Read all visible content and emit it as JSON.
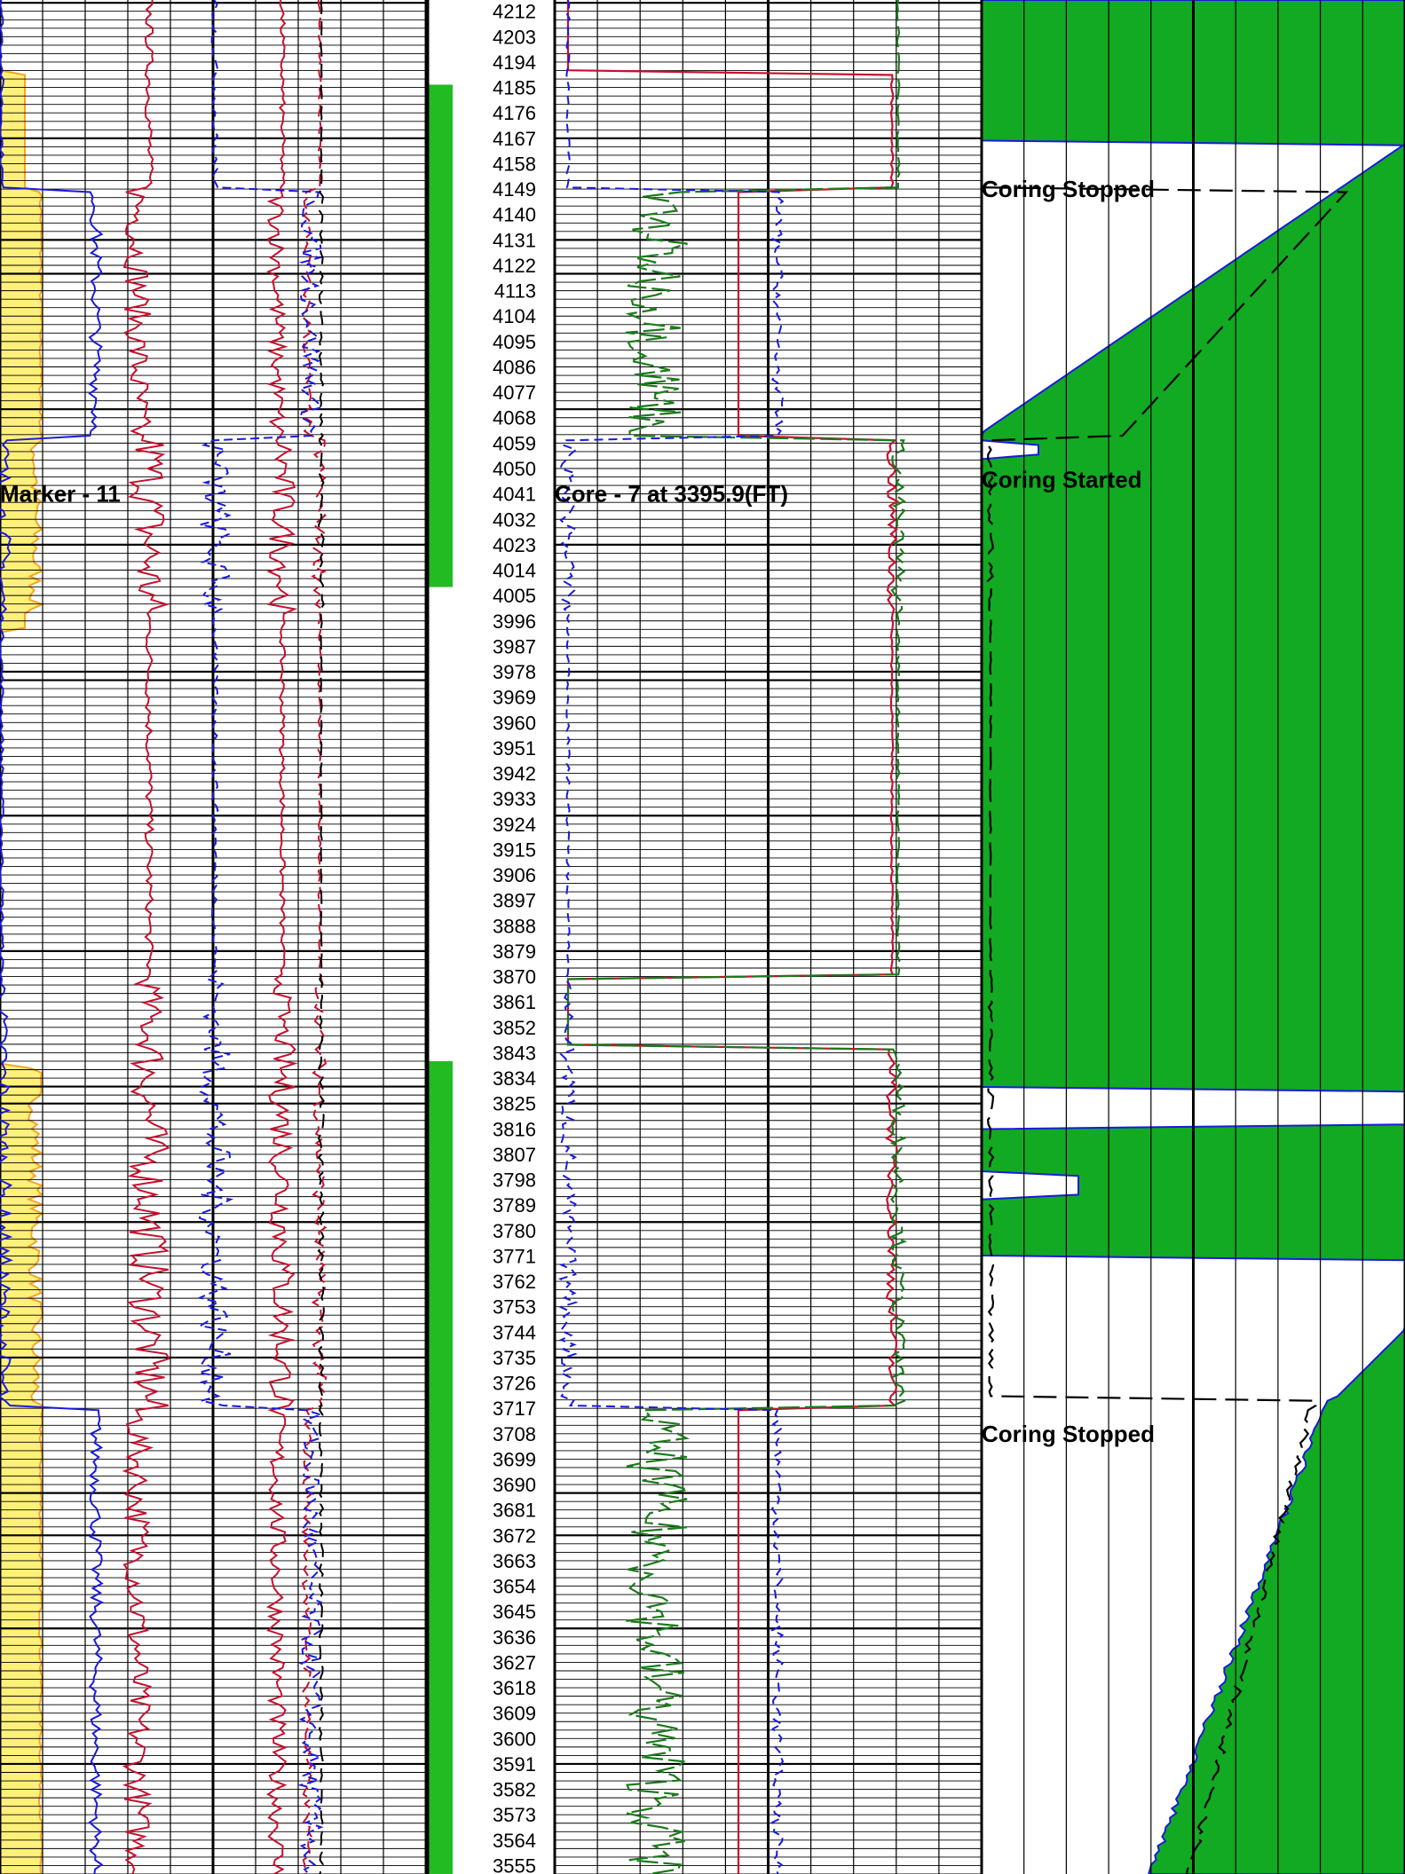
{
  "chart_data": {
    "type": "line",
    "title": "",
    "depth_unit": "FT",
    "depth_range": [
      3552,
      4216
    ],
    "depth_ticks": [
      4212,
      4203,
      4194,
      4185,
      4176,
      4167,
      4158,
      4149,
      4140,
      4131,
      4122,
      4113,
      4104,
      4095,
      4086,
      4077,
      4068,
      4059,
      4050,
      4041,
      4032,
      4023,
      4014,
      4005,
      3996,
      3987,
      3978,
      3969,
      3960,
      3951,
      3942,
      3933,
      3924,
      3915,
      3906,
      3897,
      3888,
      3879,
      3870,
      3861,
      3852,
      3843,
      3834,
      3825,
      3816,
      3807,
      3798,
      3789,
      3780,
      3771,
      3762,
      3753,
      3744,
      3735,
      3726,
      3717,
      3708,
      3699,
      3690,
      3681,
      3672,
      3663,
      3654,
      3645,
      3636,
      3627,
      3618,
      3609,
      3600,
      3591,
      3582,
      3573,
      3564,
      3555
    ],
    "coring_intervals": [
      {
        "top": 4186,
        "bottom": 4008
      },
      {
        "top": 3840,
        "bottom": 3552
      }
    ],
    "fill_gaps": [
      {
        "top": 4165,
        "bottom": 4062,
        "label": "Coring Stopped"
      },
      {
        "top": 4059,
        "bottom": 4054,
        "label": "Coring Started"
      },
      {
        "top": 3830,
        "bottom": 3816,
        "label": ""
      },
      {
        "top": 3800,
        "bottom": 3792,
        "label": ""
      },
      {
        "top": 3770,
        "bottom": 3720,
        "label": "Coring Stopped"
      }
    ],
    "beds": [
      {
        "top": 4216,
        "bottom": 4182,
        "type": "tight"
      },
      {
        "top": 4182,
        "bottom": 4149,
        "type": "tight"
      },
      {
        "top": 4149,
        "bottom": 4060,
        "type": "porous"
      },
      {
        "top": 4060,
        "bottom": 4000,
        "type": "mixed"
      },
      {
        "top": 4000,
        "bottom": 3870,
        "type": "tight"
      },
      {
        "top": 3870,
        "bottom": 3845,
        "type": "shale"
      },
      {
        "top": 3845,
        "bottom": 3718,
        "type": "mixed"
      },
      {
        "top": 3718,
        "bottom": 3552,
        "type": "porous"
      }
    ],
    "annotations": [
      {
        "text": "Marker - 11",
        "depth": 4041,
        "track": "left"
      },
      {
        "text": "Core - 7 at  3395.9(FT)",
        "depth": 4041,
        "track": "middle"
      },
      {
        "text": "Coring Stopped",
        "depth": 4149,
        "track": "right"
      },
      {
        "text": "Coring Started",
        "depth": 4046,
        "track": "right"
      },
      {
        "text": "Coring Stopped",
        "depth": 3708,
        "track": "right"
      }
    ],
    "colors": {
      "gamma_fill": "#fff07a",
      "gamma_edge": "#f5a623",
      "red_curve": "#c8102e",
      "blue_curve": "#1a1adc",
      "green_curve": "#1a7a1a",
      "core_bar": "#22bb22",
      "porosity_fill": "#11aa22",
      "grid": "#000000"
    }
  }
}
